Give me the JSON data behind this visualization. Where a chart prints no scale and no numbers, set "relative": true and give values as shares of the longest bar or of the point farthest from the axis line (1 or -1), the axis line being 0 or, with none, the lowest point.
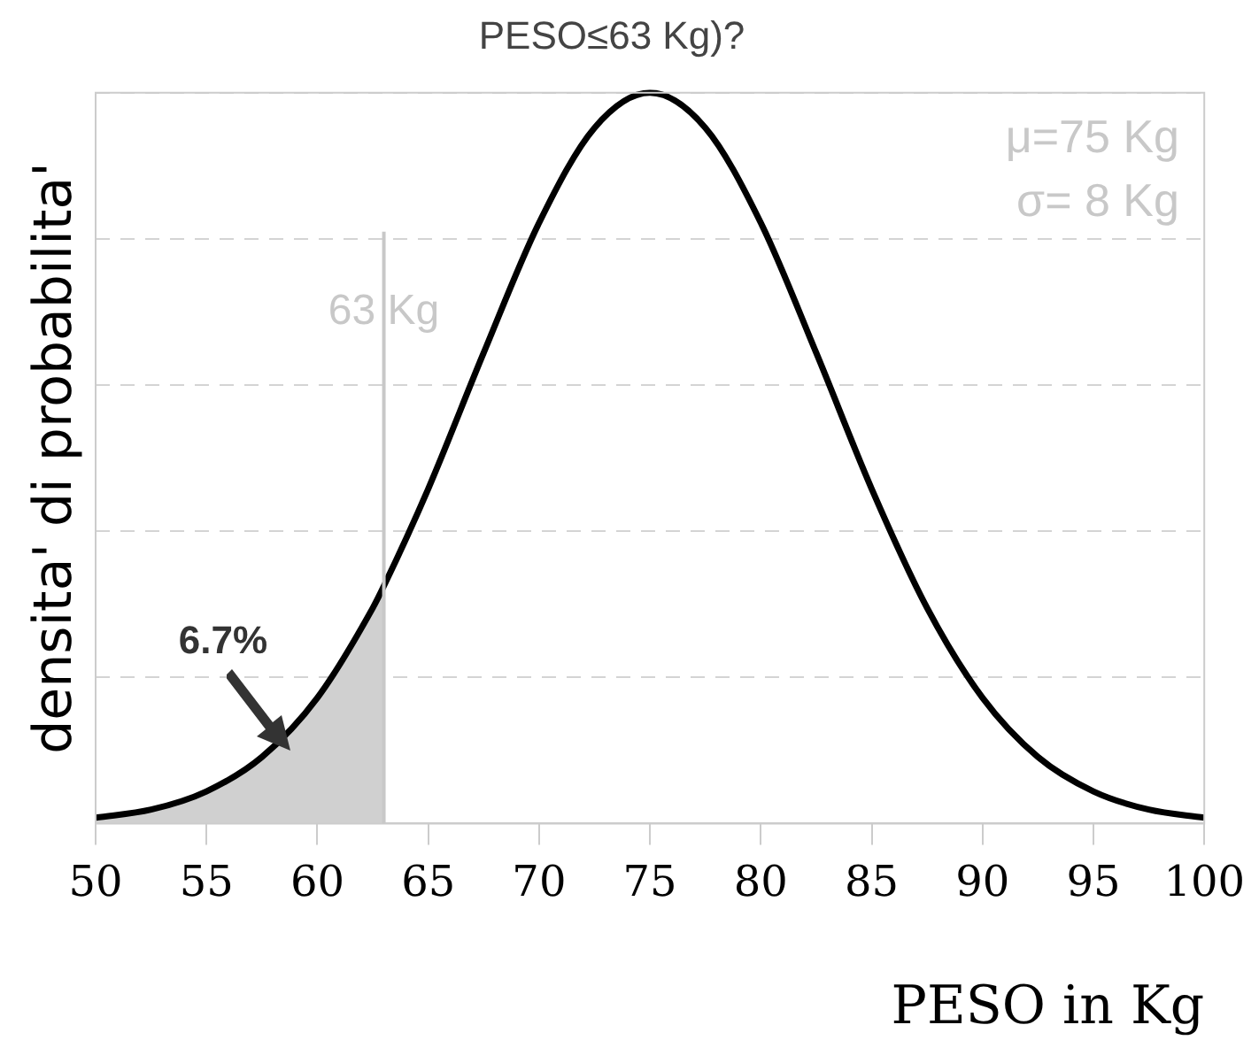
{
  "chart_data": {
    "type": "line",
    "title": "PESO≤63 Kg)?",
    "xlabel": "PESO in Kg",
    "ylabel": "densita' di probabilita'",
    "relative": true,
    "tick_labels": "x",
    "xlim": [
      50,
      100
    ],
    "xticks": [
      50,
      55,
      60,
      65,
      70,
      75,
      80,
      85,
      90,
      95,
      100
    ],
    "series": [
      {
        "type": "line",
        "color": "#000000",
        "x": [
          50,
          52.5,
          55,
          57.5,
          60,
          62.5,
          63,
          65,
          67.5,
          70,
          72.5,
          75,
          77.5,
          80,
          82.5,
          85,
          87.5,
          90,
          92.5,
          95,
          97.5,
          100
        ],
        "values": [
          0.008,
          0.019,
          0.044,
          0.091,
          0.172,
          0.295,
          0.325,
          0.458,
          0.644,
          0.822,
          0.952,
          1,
          0.952,
          0.822,
          0.644,
          0.458,
          0.295,
          0.172,
          0.091,
          0.044,
          0.019,
          0.008
        ]
      },
      {
        "type": "area",
        "color": "#d0d0d0",
        "x": [
          50,
          52.5,
          55,
          57.5,
          60,
          62.5,
          63
        ],
        "values": [
          0.008,
          0.019,
          0.044,
          0.091,
          0.172,
          0.295,
          0.325
        ]
      }
    ],
    "ref_lines": [
      {
        "axis": "x",
        "value": 63,
        "label": "63 Kg",
        "color": "#c8c8c8"
      }
    ],
    "annotations": [
      "6.7%",
      "μ=75 Kg",
      "σ= 8 Kg"
    ]
  }
}
